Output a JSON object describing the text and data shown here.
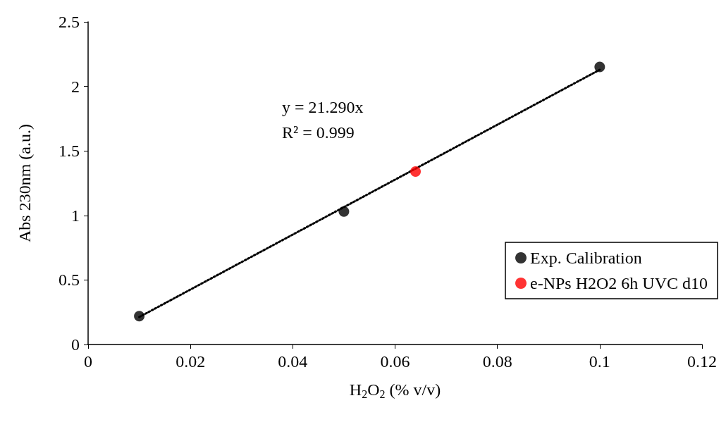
{
  "chart_data": {
    "type": "scatter",
    "xlabel": "H$_{2}$O$_{2}$ (% v/v)",
    "ylabel": "Abs 230nm (a.u.)",
    "xlim": [
      0,
      0.12
    ],
    "xticks": [
      0,
      0.02,
      0.04,
      0.06,
      0.08,
      0.1,
      0.12
    ],
    "ylim": [
      0,
      2.5
    ],
    "yticks": [
      0,
      0.5,
      1,
      1.5,
      2,
      2.5
    ],
    "grid": false,
    "legend": "bottom right",
    "marker": "circle",
    "annotations": [
      "y = 21.290x",
      "R² = 0.999"
    ],
    "series": [
      {
        "name": "Exp. Calibration",
        "color": "#000000",
        "x": [
          0.01,
          0.05,
          0.1
        ],
        "values": [
          0.22,
          1.03,
          2.15
        ]
      },
      {
        "name": "e-NPs H2O2 6h UVC d10",
        "color": "#ff0000",
        "x": [
          0.064
        ],
        "values": [
          1.34
        ]
      },
      {
        "type": "line",
        "color": "#000000",
        "marker": "none",
        "line_style": "dotted",
        "x": [
          0.01,
          0.1
        ],
        "values": [
          0.2129,
          2.129
        ]
      }
    ]
  }
}
